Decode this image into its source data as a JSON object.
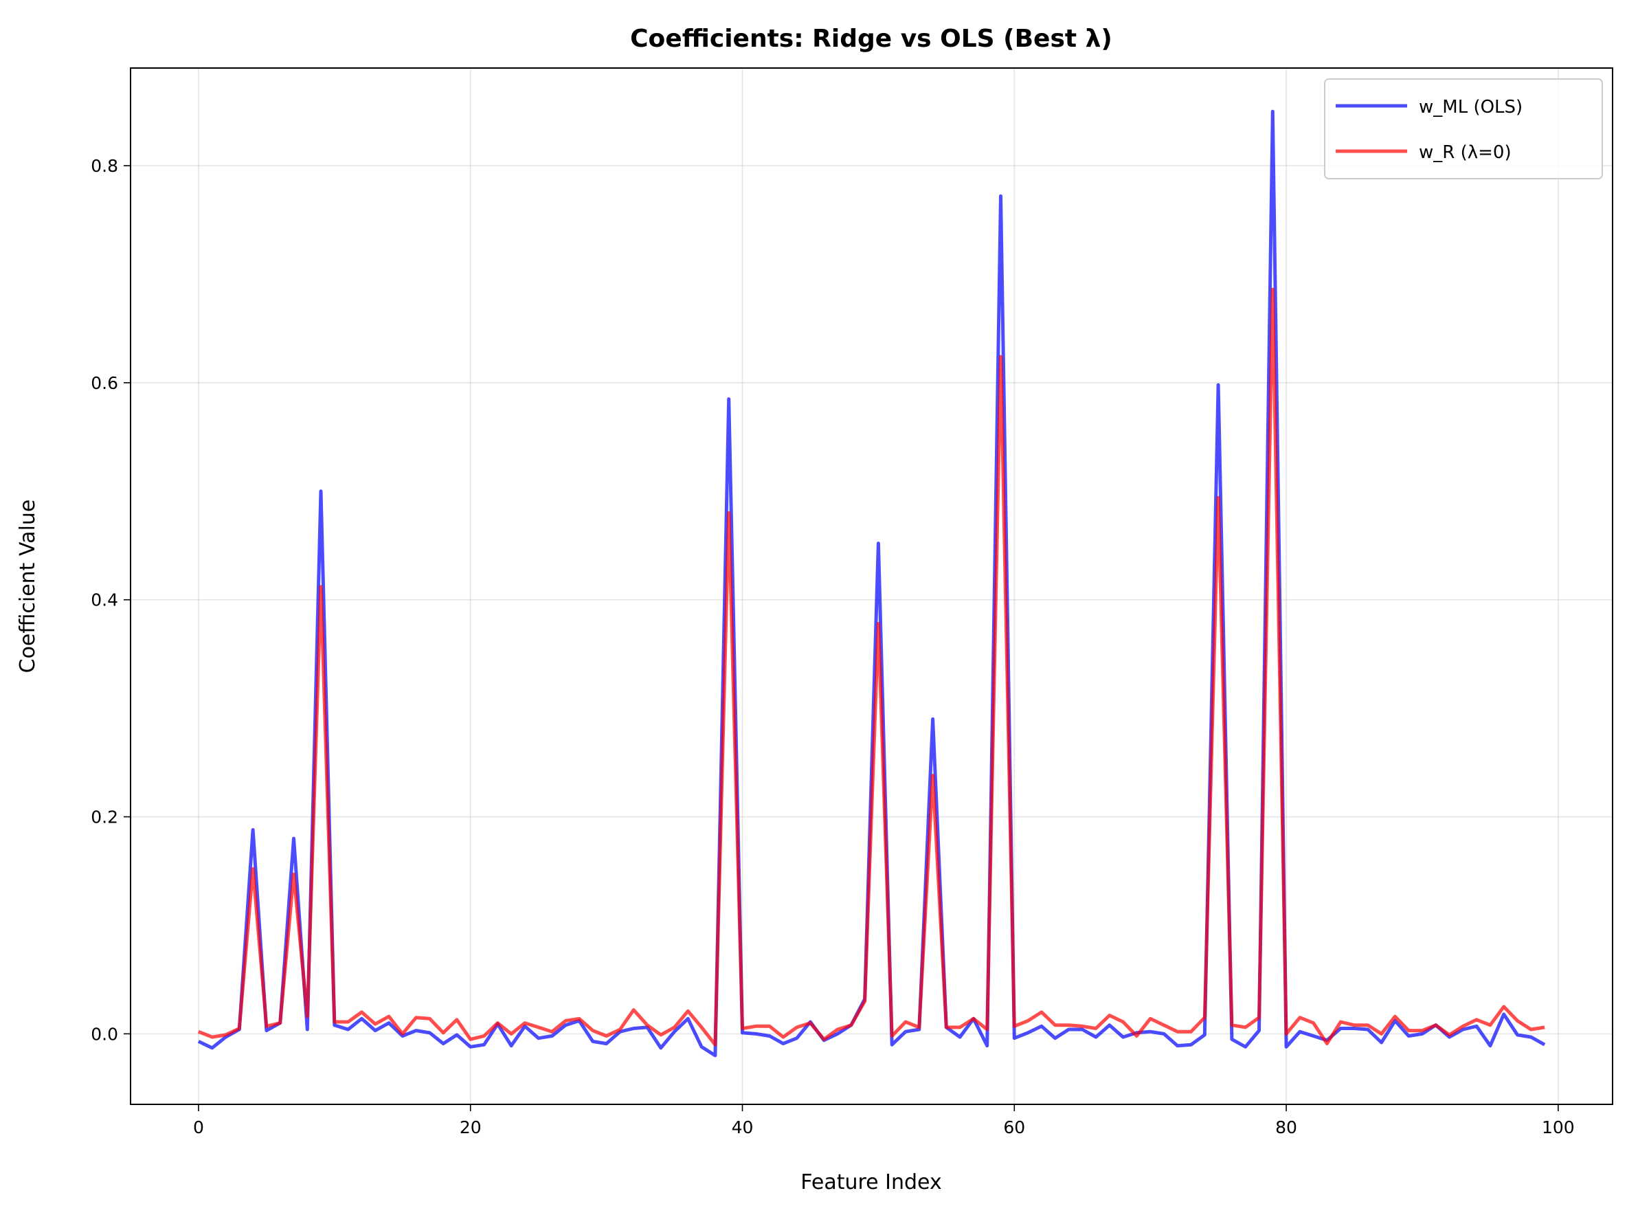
{
  "chart_data": {
    "type": "line",
    "title": "Coefficients: Ridge vs OLS (Best λ)",
    "xlabel": "Feature Index",
    "ylabel": "Coefficient Value",
    "xlim": [
      -5,
      104
    ],
    "ylim": [
      -0.065,
      0.89
    ],
    "xticks": [
      0,
      20,
      40,
      60,
      80,
      100
    ],
    "yticks": [
      0.0,
      0.2,
      0.4,
      0.6,
      0.8
    ],
    "xtick_labels": [
      "0",
      "20",
      "40",
      "60",
      "80",
      "100"
    ],
    "ytick_labels": [
      "0.0",
      "0.2",
      "0.4",
      "0.6",
      "0.8"
    ],
    "grid": true,
    "legend_position": "top-right",
    "x": [
      0,
      1,
      2,
      3,
      4,
      5,
      6,
      7,
      8,
      9,
      10,
      11,
      12,
      13,
      14,
      15,
      16,
      17,
      18,
      19,
      20,
      21,
      22,
      23,
      24,
      25,
      26,
      27,
      28,
      29,
      30,
      31,
      32,
      33,
      34,
      35,
      36,
      37,
      38,
      39,
      40,
      41,
      42,
      43,
      44,
      45,
      46,
      47,
      48,
      49,
      50,
      51,
      52,
      53,
      54,
      55,
      56,
      57,
      58,
      59,
      60,
      61,
      62,
      63,
      64,
      65,
      66,
      67,
      68,
      69,
      70,
      71,
      72,
      73,
      74,
      75,
      76,
      77,
      78,
      79,
      80,
      81,
      82,
      83,
      84,
      85,
      86,
      87,
      88,
      89,
      90,
      91,
      92,
      93,
      94,
      95,
      96,
      97,
      98,
      99
    ],
    "series": [
      {
        "name": "w_ML (OLS)",
        "color": "#0000ff",
        "values": [
          -0.007,
          -0.013,
          -0.003,
          0.004,
          0.188,
          0.003,
          0.01,
          0.18,
          0.004,
          0.5,
          0.008,
          0.004,
          0.014,
          0.003,
          0.01,
          -0.002,
          0.003,
          0.001,
          -0.009,
          -0.001,
          -0.012,
          -0.01,
          0.009,
          -0.011,
          0.007,
          -0.004,
          -0.002,
          0.008,
          0.012,
          -0.007,
          -0.009,
          0.002,
          0.005,
          0.006,
          -0.013,
          0.002,
          0.014,
          -0.012,
          -0.02,
          0.585,
          0.001,
          0.0,
          -0.002,
          -0.009,
          -0.004,
          0.011,
          -0.006,
          0.0,
          0.008,
          0.032,
          0.452,
          -0.01,
          0.002,
          0.004,
          0.29,
          0.006,
          -0.003,
          0.014,
          -0.011,
          0.772,
          -0.004,
          0.001,
          0.007,
          -0.004,
          0.004,
          0.004,
          -0.003,
          0.008,
          -0.003,
          0.001,
          0.002,
          0.0,
          -0.011,
          -0.01,
          -0.001,
          0.598,
          -0.005,
          -0.012,
          0.003,
          0.85,
          -0.012,
          0.002,
          -0.002,
          -0.006,
          0.005,
          0.005,
          0.004,
          -0.008,
          0.012,
          -0.002,
          0.0,
          0.008,
          -0.003,
          0.004,
          0.007,
          -0.011,
          0.018,
          -0.001,
          -0.003,
          -0.01
        ]
      },
      {
        "name": "w_R (λ=0)",
        "color": "#ff0000",
        "values": [
          0.002,
          -0.003,
          -0.001,
          0.005,
          0.152,
          0.007,
          0.01,
          0.147,
          0.016,
          0.412,
          0.011,
          0.011,
          0.02,
          0.009,
          0.016,
          0.0,
          0.015,
          0.014,
          0.001,
          0.013,
          -0.005,
          -0.002,
          0.01,
          0.0,
          0.01,
          0.006,
          0.002,
          0.012,
          0.014,
          0.003,
          -0.002,
          0.004,
          0.022,
          0.008,
          -0.001,
          0.006,
          0.021,
          0.006,
          -0.01,
          0.48,
          0.005,
          0.007,
          0.007,
          -0.003,
          0.006,
          0.01,
          -0.005,
          0.004,
          0.008,
          0.03,
          0.378,
          -0.002,
          0.011,
          0.006,
          0.238,
          0.006,
          0.006,
          0.014,
          0.004,
          0.624,
          0.007,
          0.012,
          0.02,
          0.008,
          0.008,
          0.007,
          0.005,
          0.017,
          0.011,
          -0.002,
          0.014,
          0.008,
          0.002,
          0.002,
          0.015,
          0.494,
          0.008,
          0.006,
          0.015,
          0.686,
          0.0,
          0.015,
          0.01,
          -0.009,
          0.011,
          0.008,
          0.008,
          0.0,
          0.016,
          0.003,
          0.003,
          0.008,
          -0.001,
          0.007,
          0.013,
          0.008,
          0.025,
          0.012,
          0.004,
          0.006
        ]
      }
    ]
  }
}
